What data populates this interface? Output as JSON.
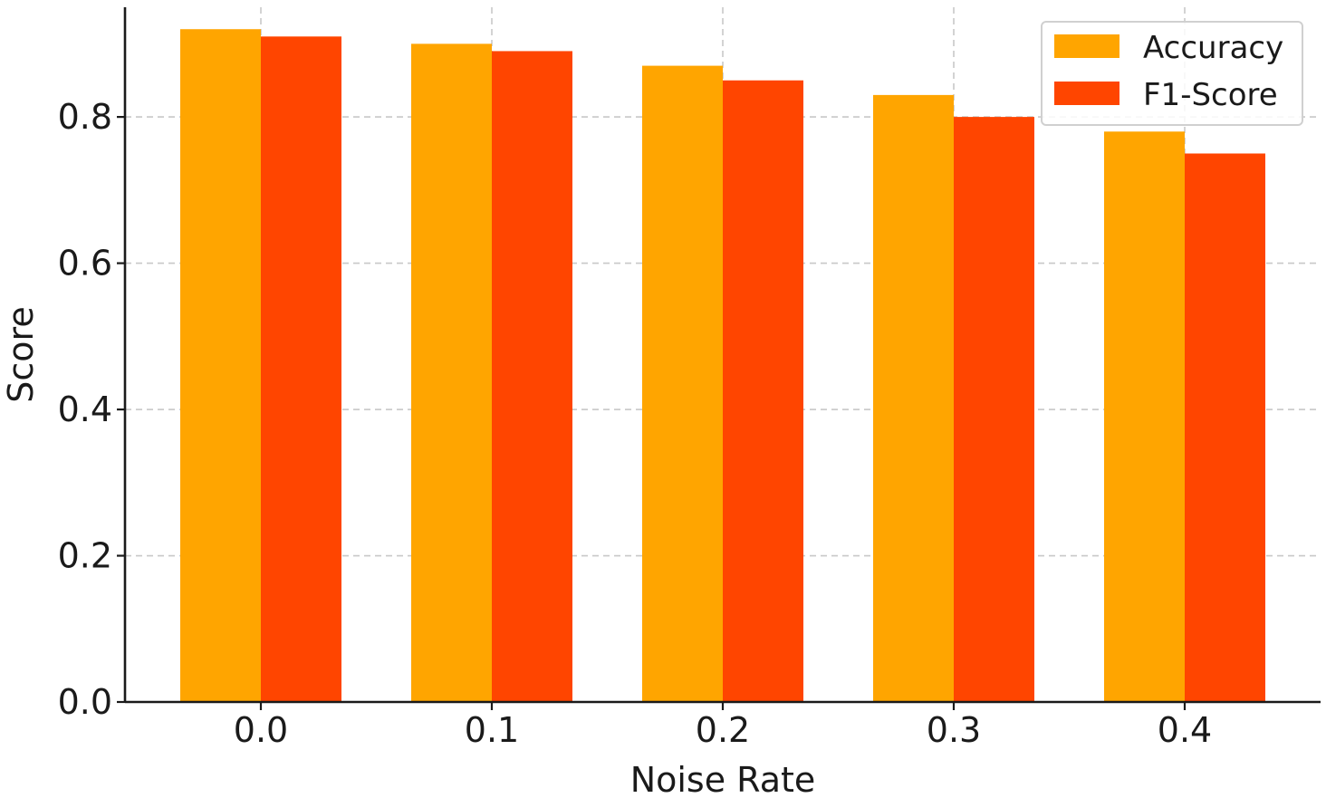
{
  "chart_data": {
    "type": "bar",
    "categories": [
      "0.0",
      "0.1",
      "0.2",
      "0.3",
      "0.4"
    ],
    "series": [
      {
        "name": "Accuracy",
        "color": "#FFA500",
        "values": [
          0.92,
          0.9,
          0.87,
          0.83,
          0.78
        ]
      },
      {
        "name": "F1-Score",
        "color": "#FF4500",
        "values": [
          0.91,
          0.89,
          0.85,
          0.8,
          0.75
        ]
      }
    ],
    "title": "",
    "xlabel": "Noise Rate",
    "ylabel": "Score",
    "ylim": [
      0,
      0.95
    ],
    "yticks": [
      "0.0",
      "0.2",
      "0.4",
      "0.6",
      "0.8"
    ],
    "grid": true,
    "legend": "top-right"
  }
}
